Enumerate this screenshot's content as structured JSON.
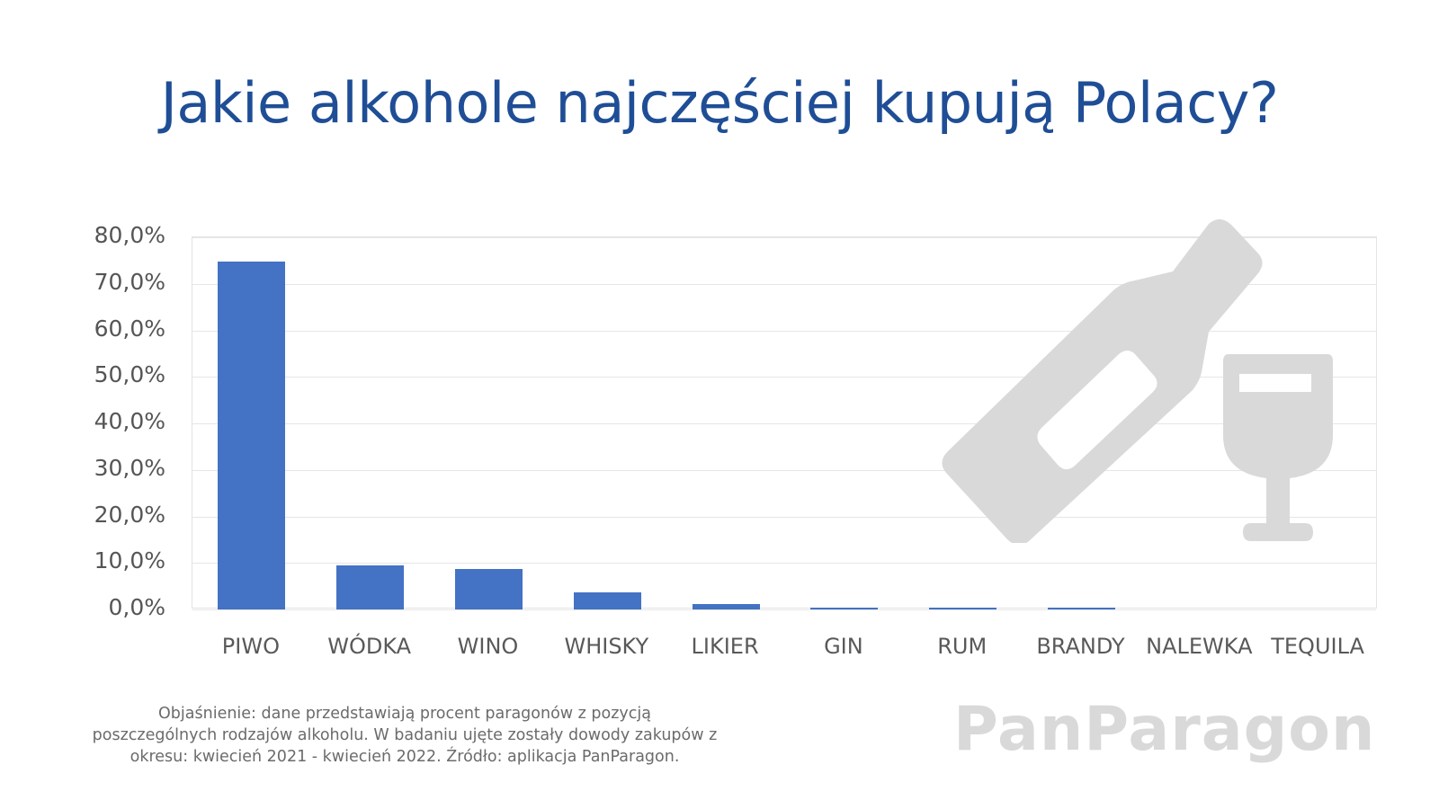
{
  "title": "Jakie alkohole najczęściej kupują Polacy?",
  "colors": {
    "title": "#1F4E96",
    "bar": "#4472C4",
    "watermark": "#d9d9d9"
  },
  "chart_data": {
    "type": "bar",
    "title": "Jakie alkohole najczęściej kupują Polacy?",
    "xlabel": "",
    "ylabel": "",
    "categories": [
      "PIWO",
      "WÓDKA",
      "WINO",
      "WHISKY",
      "LIKIER",
      "GIN",
      "RUM",
      "BRANDY",
      "NALEWKA",
      "TEQUILA"
    ],
    "values": [
      74.8,
      9.4,
      8.6,
      3.6,
      1.2,
      0.3,
      0.3,
      0.3,
      0.0,
      0.0
    ],
    "ylim": [
      0,
      80
    ],
    "yticks": [
      "0,0%",
      "10,0%",
      "20,0%",
      "30,0%",
      "40,0%",
      "50,0%",
      "60,0%",
      "70,0%",
      "80,0%"
    ],
    "grid": true,
    "legend": "none",
    "unit": "%"
  },
  "footnote": {
    "line1": "Objaśnienie: dane przedstawiają procent paragonów z pozycją",
    "line2": "poszczególnych rodzajów alkoholu. W badaniu ujęte zostały dowody zakupów z",
    "line3": "okresu: kwiecień 2021 - kwiecień 2022. Źródło: aplikacja PanParagon."
  },
  "brand": "PanParagon",
  "decor": {
    "bottle_icon": "wine-bottle-icon",
    "glass_icon": "wine-glass-icon"
  }
}
